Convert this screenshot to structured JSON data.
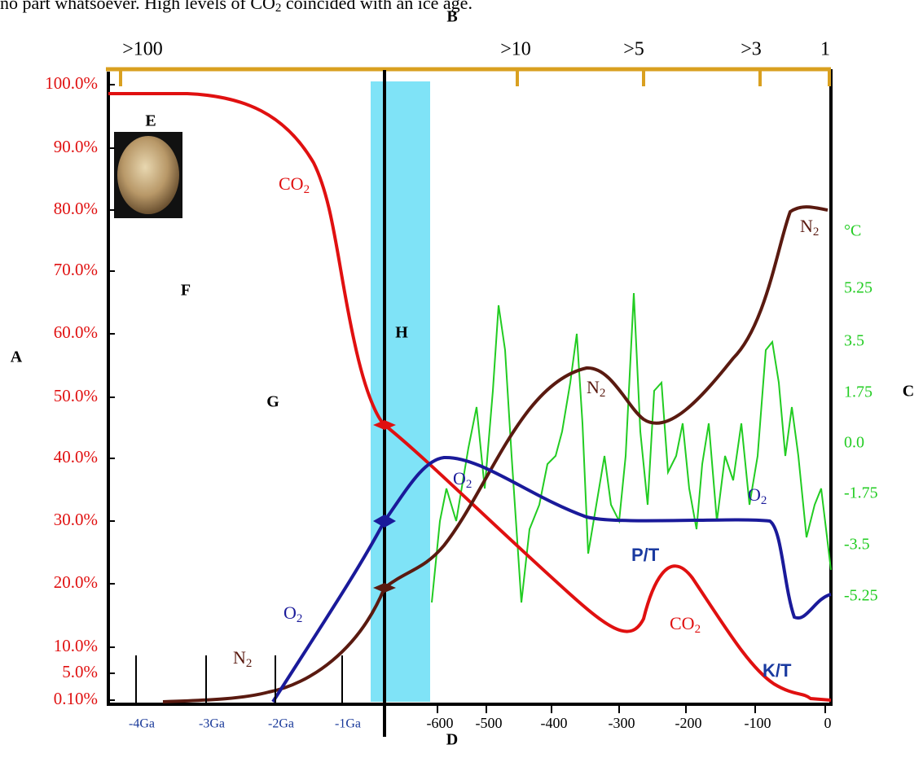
{
  "caption": [
    "no part whatsoever. High levels of CO",
    "2",
    " coincided with an ice age."
  ],
  "letters": [
    "A",
    "B",
    "C",
    "D",
    "E",
    "F",
    "G",
    "H"
  ],
  "top_axis": [
    ">100",
    ">10",
    ">5",
    ">3",
    "1"
  ],
  "left_axis": [
    "100.0%",
    "90.0%",
    "80.0%",
    "70.0%",
    "60.0%",
    "50.0%",
    "40.0%",
    "30.0%",
    "20.0%",
    "10.0%",
    "5.0%",
    "0.10%"
  ],
  "right_axis": [
    "°C",
    "5.25",
    "3.5",
    "1.75",
    "0.0",
    "-1.75",
    "-3.5",
    "-5.25"
  ],
  "bottom_axis": [
    "-4Ga",
    "-3Ga",
    "-2Ga",
    "-1Ga",
    "-600",
    "-500",
    "-400",
    "-300",
    "-200",
    "-100",
    "0"
  ],
  "curve_labels": [
    {
      "text": "CO",
      "sub": "2"
    },
    {
      "text": "N",
      "sub": "2"
    },
    {
      "text": "N",
      "sub": "2"
    },
    {
      "text": "O",
      "sub": "2"
    },
    {
      "text": "O",
      "sub": "2"
    },
    {
      "text": "P/T"
    },
    {
      "text": "CO",
      "sub": "2"
    },
    {
      "text": "O",
      "sub": "2"
    },
    {
      "text": "K/T"
    },
    {
      "text": "N",
      "sub": "2"
    }
  ]
}
